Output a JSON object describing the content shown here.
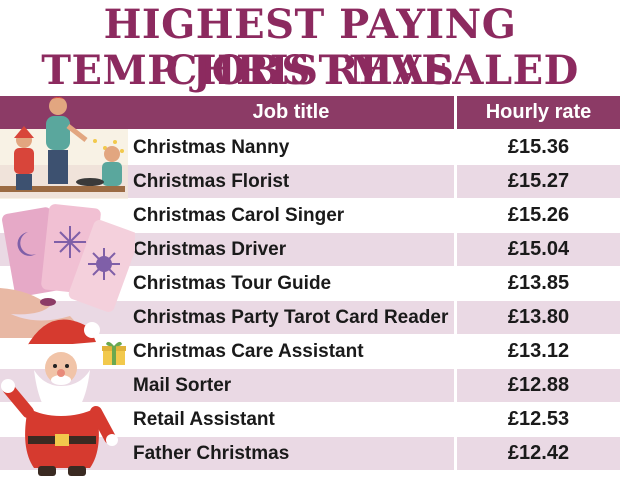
{
  "title_line1": "HIGHEST PAYING CHRISTMAS",
  "title_line2": "TEMP JOBS REVEALED",
  "chart_data": {
    "type": "table",
    "columns": [
      "Job title",
      "Hourly rate"
    ],
    "rows": [
      {
        "job": "Christmas Nanny",
        "rate": "£15.36"
      },
      {
        "job": "Christmas Florist",
        "rate": "£15.27"
      },
      {
        "job": "Christmas Carol Singer",
        "rate": "£15.26"
      },
      {
        "job": "Christmas Driver",
        "rate": "£15.04"
      },
      {
        "job": "Christmas Tour Guide",
        "rate": "£13.85"
      },
      {
        "job": "Christmas Party Tarot Card Reader",
        "rate": "£13.80"
      },
      {
        "job": "Christmas Care Assistant",
        "rate": "£13.12"
      },
      {
        "job": "Mail Sorter",
        "rate": "£12.88"
      },
      {
        "job": "Retail Assistant",
        "rate": "£12.53"
      },
      {
        "job": "Father Christmas",
        "rate": "£12.42"
      }
    ]
  },
  "colors": {
    "title": "#8c2a5f",
    "header": "#8c3b66",
    "alt_row": "#ead9e4"
  },
  "illustrations": [
    "nanny-with-children",
    "tarot-cards",
    "gift-box",
    "santa-claus"
  ]
}
